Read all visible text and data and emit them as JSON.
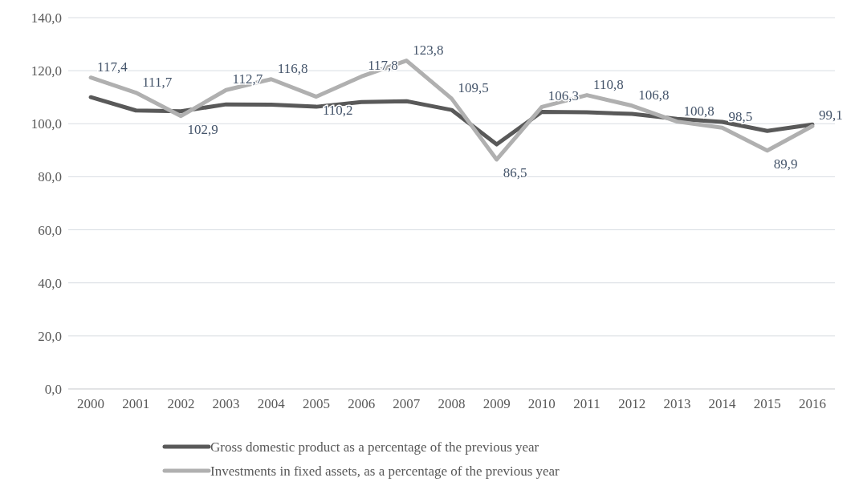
{
  "chart_data": {
    "type": "line",
    "categories": [
      "2000",
      "2001",
      "2002",
      "2003",
      "2004",
      "2005",
      "2006",
      "2007",
      "2008",
      "2009",
      "2010",
      "2011",
      "2012",
      "2013",
      "2014",
      "2015",
      "2016"
    ],
    "series": [
      {
        "name": "Gross domestic product as a percentage of the previous year",
        "color": "#595959",
        "values": [
          110.0,
          105.0,
          104.7,
          107.3,
          107.2,
          106.4,
          108.2,
          108.5,
          105.2,
          92.2,
          104.5,
          104.3,
          103.7,
          101.8,
          100.7,
          97.3,
          99.7
        ]
      },
      {
        "name": "Investments in fixed assets, as a percentage of the previous year",
        "color": "#b0b0b0",
        "values": [
          117.4,
          111.7,
          102.9,
          112.7,
          116.8,
          110.2,
          117.8,
          123.8,
          109.5,
          86.5,
          106.3,
          110.8,
          106.8,
          100.8,
          98.5,
          89.9,
          99.1
        ],
        "value_labels": [
          "117,4",
          "111,7",
          "102,9",
          "112,7",
          "116,8",
          "110,2",
          "117,8",
          "123,8",
          "109,5",
          "86,5",
          "106,3",
          "110,8",
          "106,8",
          "100,8",
          "98,5",
          "89,9",
          "99,1"
        ]
      }
    ],
    "ylim": [
      0,
      140
    ],
    "yticks": [
      {
        "value": 0,
        "label": "0,0"
      },
      {
        "value": 20,
        "label": "20,0"
      },
      {
        "value": 40,
        "label": "40,0"
      },
      {
        "value": 60,
        "label": "60,0"
      },
      {
        "value": 80,
        "label": "80,0"
      },
      {
        "value": 100,
        "label": "100,0"
      },
      {
        "value": 120,
        "label": "120,0"
      },
      {
        "value": 140,
        "label": "140,0"
      }
    ],
    "grid": "y",
    "legend": "bottom"
  }
}
